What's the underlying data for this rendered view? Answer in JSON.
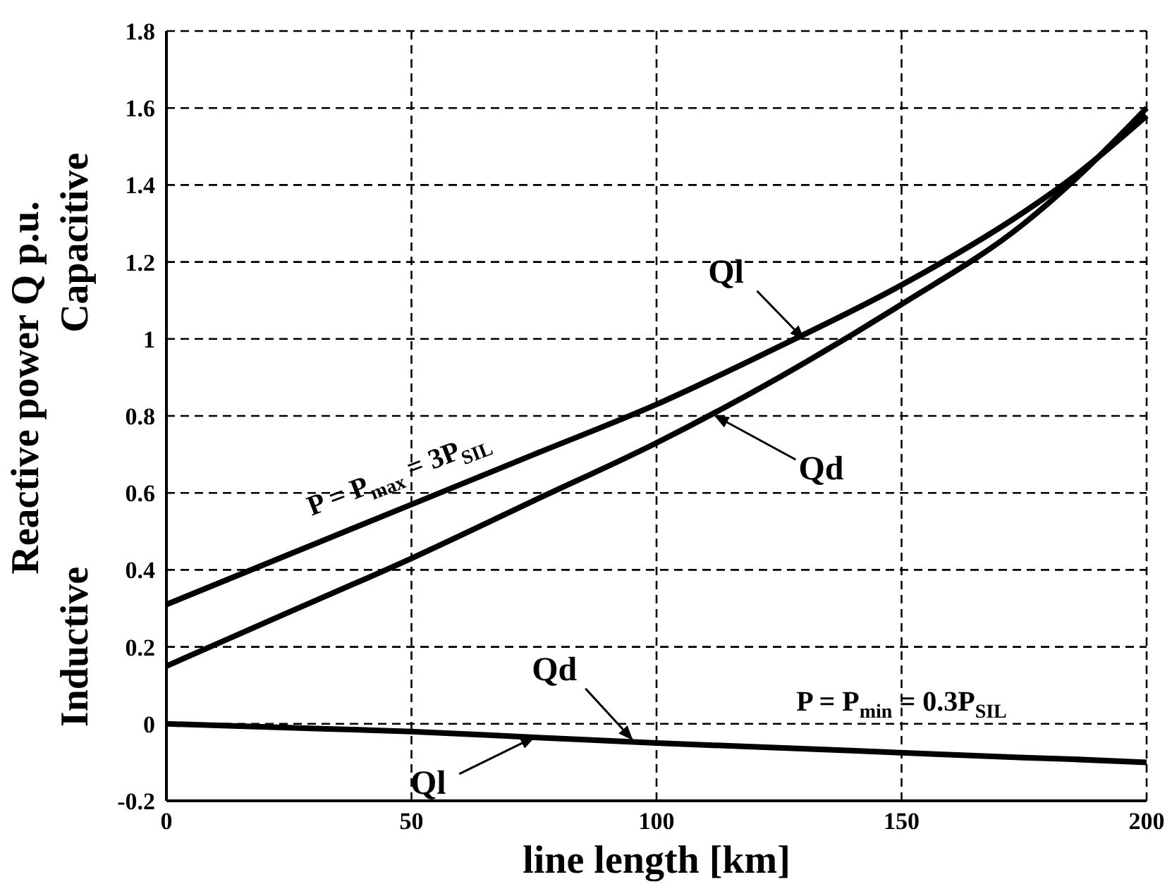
{
  "chart_data": {
    "type": "line",
    "xlabel": "line length [km]",
    "ylabel": "Reactive power Q p.u.",
    "x": [
      0,
      25,
      50,
      75,
      100,
      125,
      150,
      175,
      185,
      200
    ],
    "series": [
      {
        "color": "#000000",
        "values": [
          0.31,
          0.44,
          0.57,
          0.7,
          0.83,
          0.98,
          1.14,
          1.33,
          1.42,
          1.58
        ]
      },
      {
        "color": "#000000",
        "values": [
          0.15,
          0.29,
          0.43,
          0.58,
          0.73,
          0.9,
          1.09,
          1.3,
          1.41,
          1.6
        ]
      },
      {
        "color": "#000000",
        "values": [
          0,
          -0.01,
          -0.02,
          -0.035,
          -0.05,
          -0.062,
          -0.075,
          -0.088,
          -0.092,
          -0.1
        ]
      }
    ],
    "xlim": [
      0,
      200
    ],
    "ylim": [
      -0.2,
      1.8
    ],
    "xticks": [
      0,
      50,
      100,
      150,
      200
    ],
    "yticks": [
      -0.2,
      0,
      0.2,
      0.4,
      0.6,
      0.8,
      1,
      1.2,
      1.4,
      1.6,
      1.8
    ],
    "grid": true,
    "marker": "none",
    "line_style": "solid",
    "annotations": [
      {
        "text": "Ql",
        "x": 130,
        "y": 1.0
      },
      {
        "text": "Qd",
        "x": 112,
        "y": 0.8
      },
      {
        "text": "Qd",
        "x": 95,
        "y": -0.04
      },
      {
        "text": "Ql",
        "x": 75,
        "y": -0.035
      },
      "P = P$_{max}$ = 3P$_{SIL}$",
      "P = P$_{min}$ = 0.3P$_{SIL}$",
      "Capacitive",
      "Inductive"
    ]
  }
}
